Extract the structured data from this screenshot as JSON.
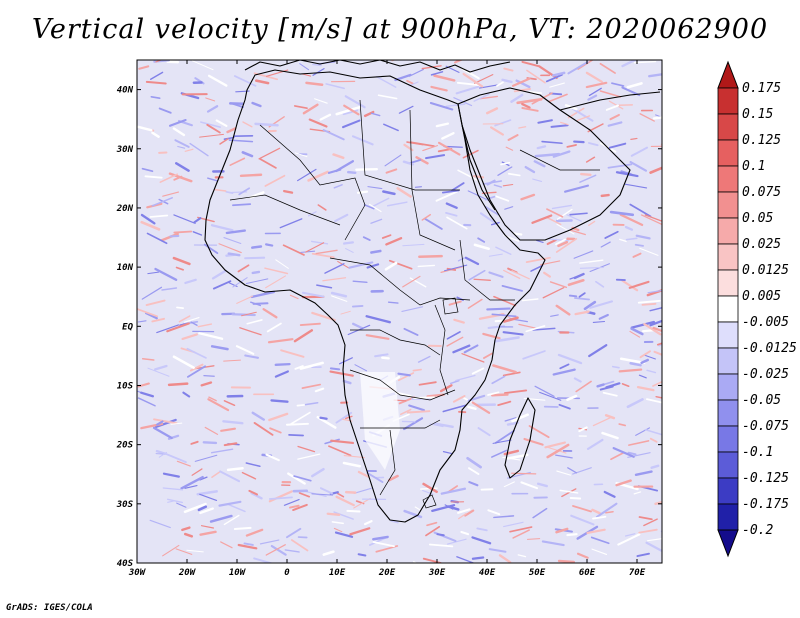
{
  "title": "Vertical velocity [m/s] at 900hPa, VT: 2020062900",
  "credit": "GrADS: IGES/COLA",
  "map": {
    "lon_range": [
      -30,
      75
    ],
    "lat_range": [
      -40,
      45
    ],
    "x_ticks": [
      {
        "lon": -30,
        "label": "30W"
      },
      {
        "lon": -20,
        "label": "20W"
      },
      {
        "lon": -10,
        "label": "10W"
      },
      {
        "lon": 0,
        "label": "0"
      },
      {
        "lon": 10,
        "label": "10E"
      },
      {
        "lon": 20,
        "label": "20E"
      },
      {
        "lon": 30,
        "label": "30E"
      },
      {
        "lon": 40,
        "label": "40E"
      },
      {
        "lon": 50,
        "label": "50E"
      },
      {
        "lon": 60,
        "label": "60E"
      },
      {
        "lon": 70,
        "label": "70E"
      }
    ],
    "y_ticks": [
      {
        "lat": 40,
        "label": "40N"
      },
      {
        "lat": 30,
        "label": "30N"
      },
      {
        "lat": 20,
        "label": "20N"
      },
      {
        "lat": 10,
        "label": "10N"
      },
      {
        "lat": 0,
        "label": "EQ"
      },
      {
        "lat": -10,
        "label": "10S"
      },
      {
        "lat": -20,
        "label": "20S"
      },
      {
        "lat": -30,
        "label": "30S"
      },
      {
        "lat": -40,
        "label": "40S"
      }
    ]
  },
  "colorbar": {
    "labels": [
      "0.175",
      "0.15",
      "0.125",
      "0.1",
      "0.075",
      "0.05",
      "0.025",
      "0.0125",
      "0.005",
      "-0.005",
      "-0.0125",
      "-0.025",
      "-0.05",
      "-0.075",
      "-0.1",
      "-0.125",
      "-0.175",
      "-0.2"
    ],
    "colors": [
      "#b01818",
      "#c83030",
      "#d84848",
      "#e66060",
      "#ee7878",
      "#f29090",
      "#f6aaaa",
      "#f9c4c4",
      "#fcdede",
      "#ffffff",
      "#dedefc",
      "#c4c4f8",
      "#aaaaf4",
      "#9090ee",
      "#7878e6",
      "#5c5cd8",
      "#3c3cc4",
      "#2020a8",
      "#140c8c"
    ]
  },
  "icons": {
    "top": "colorbar-top-triangle-icon",
    "bottom": "colorbar-bottom-triangle-icon"
  }
}
